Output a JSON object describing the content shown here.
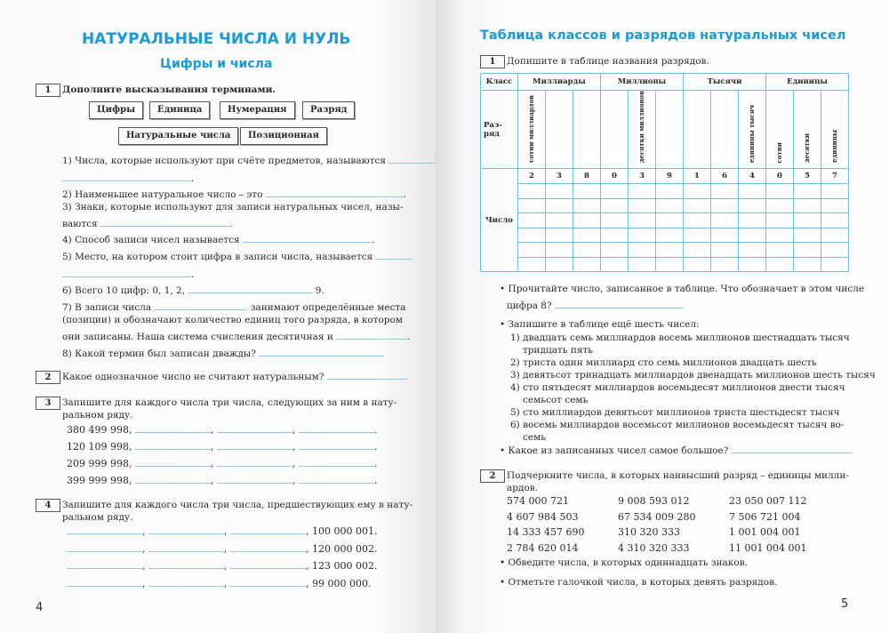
{
  "left": {
    "title": "НАТУРАЛЬНЫЕ ЧИСЛА И НУЛЬ",
    "subtitle": "Цифры и числа",
    "page_number": "4",
    "ex1": {
      "num": "1",
      "task": "Дополните высказывания терминами.",
      "terms": [
        "Цифры",
        "Единица",
        "Нумерация",
        "Разряд",
        "Натуральные числа",
        "Позиционная"
      ],
      "items": [
        "1) Числа, которые используют при счёте предметов, называются",
        "2) Наименьшее натуральное число – это",
        "3) Знаки, которые используют для записи натуральных чисел, назы-",
        "ваются",
        "4) Способ записи чисел называется",
        "5) Место, на котором стоит цифра в записи числа, называется",
        "6) Всего 10 цифр: 0, 1, 2,",
        "9.",
        "7) В записи числа",
        "занимают определённые места",
        "(позиции) и обозначают количество единиц того разряда, в котором",
        "они записаны. Наша система счисления десятичная и",
        "8) Какой термин был записан дважды?"
      ]
    },
    "ex2": {
      "num": "2",
      "task": "Какое однозначное число не считают натуральным?"
    },
    "ex3": {
      "num": "3",
      "task1": "Запишите для каждого числа три числа, следующих за ним в нату-",
      "task2": "ральном ряду.",
      "numbers": [
        "380 499 998,",
        "120 109 998,",
        "209 999 998,",
        "399 999 998,"
      ]
    },
    "ex4": {
      "num": "4",
      "task1": "Запишите для каждого числа три числа, предшествующих ему в нату-",
      "task2": "ральном ряду.",
      "numbers": [
        ", 100 000 001.",
        ", 120 000 002.",
        ", 123 000 002.",
        ", 99 000 000."
      ]
    }
  },
  "right": {
    "title": "Таблица классов и разрядов натуральных чисел",
    "page_number": "5",
    "ex1": {
      "num": "1",
      "task": "Допишите в таблице названия разрядов.",
      "table": {
        "class_label": "Класс",
        "rank_label": "Раз-ряд",
        "number_label": "Число",
        "classes": [
          "Миллиарды",
          "Миллионы",
          "Тысячи",
          "Единицы"
        ],
        "ranks": [
          "сотни миллиардов",
          "",
          "",
          "",
          "десятки миллионов",
          "",
          "",
          "",
          "единицы тысяч",
          "сотни",
          "десятки",
          "единицы"
        ],
        "digits": [
          "2",
          "3",
          "8",
          "0",
          "3",
          "9",
          "1",
          "6",
          "4",
          "0",
          "5",
          "7"
        ]
      },
      "q1a": "Прочитайте число, записанное в таблице. Что обозначает в этом числе",
      "q1b": "цифра 8?",
      "q2": "Запишите в таблице ещё шесть чисел:",
      "list": [
        "1) двадцать семь миллиардов восемь миллионов шестнадцать тысяч",
        "тридцать пять",
        "2) триста один миллиард сто семь миллионов двадцать шесть",
        "3) девятьсот тринадцать миллиардов двенадцать миллионов шесть тысяч",
        "4) сто пятьдесят миллиардов восемьдесят миллионов двести тысяч",
        "семьсот семь",
        "5) сто миллиардов девятьсот миллионов триста шестьдесят тысяч",
        "6) восемь миллиардов восемьсот миллионов восемьдесят тысяч во-",
        "семь"
      ],
      "q3": "Какое из записанных чисел самое большое?"
    },
    "ex2": {
      "num": "2",
      "task1": "Подчеркните числа, в которых наивысший разряд – единицы милли-",
      "task2": "ардов.",
      "numbers": [
        "574 000 721",
        "9 008 593 012",
        "23 050 007 112",
        "4 607 984 503",
        "67 534 009 280",
        "7 506 721 004",
        "14 333 457 690",
        "310 320 333",
        "1 001 004 001",
        "2 784 620 014",
        "4 310 320 333",
        "11 001 004 001"
      ],
      "b1": "Обведите числа, в которых одиннадцать знаков.",
      "b2": "Отметьте галочкой числа, в которых девять разрядов."
    }
  },
  "colors": {
    "accent": "#1b9ad8",
    "table_border": "#6ec0ea",
    "answer_line": "#8fc7e8"
  }
}
